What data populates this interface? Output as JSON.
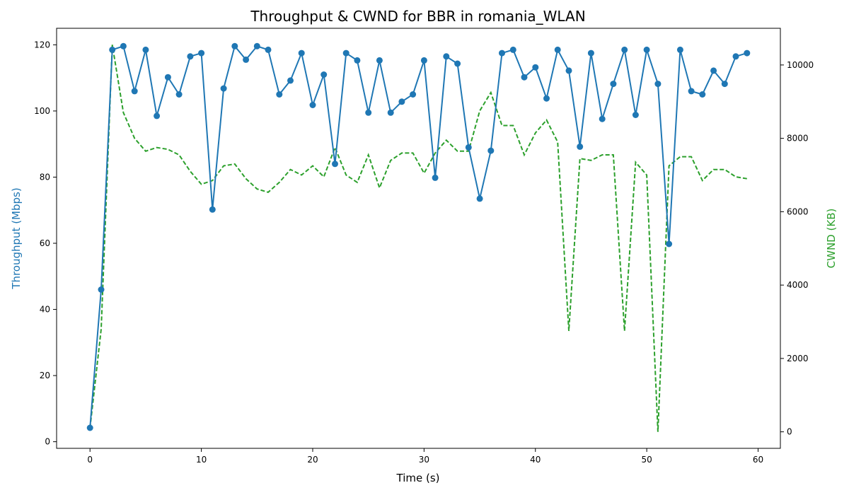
{
  "chart_data": {
    "type": "line",
    "title": "Throughput & CWND for BBR in romania_WLAN",
    "xlabel": "Time (s)",
    "ylabel_left": "Throughput (Mbps)",
    "ylabel_right": "CWND (KB)",
    "xlim": [
      -3,
      62
    ],
    "ylim_left": [
      -2,
      125
    ],
    "ylim_right": [
      -450,
      11000
    ],
    "x_ticks": [
      0,
      10,
      20,
      30,
      40,
      50,
      60
    ],
    "y_left_ticks": [
      0,
      20,
      40,
      60,
      80,
      100,
      120
    ],
    "y_right_ticks": [
      0,
      2000,
      4000,
      6000,
      8000,
      10000
    ],
    "grid": false,
    "colors": {
      "throughput": "#1f77b4",
      "cwnd": "#2ca02c"
    },
    "series": [
      {
        "axis": "left",
        "style": "solid-with-markers",
        "x": [
          0,
          1,
          2,
          3,
          4,
          5,
          6,
          7,
          8,
          9,
          10,
          11,
          12,
          13,
          14,
          15,
          16,
          17,
          18,
          19,
          20,
          21,
          22,
          23,
          24,
          25,
          26,
          27,
          28,
          29,
          30,
          31,
          32,
          33,
          34,
          35,
          36,
          37,
          38,
          39,
          40,
          41,
          42,
          43,
          44,
          45,
          46,
          47,
          48,
          49,
          50,
          51,
          52,
          53,
          54,
          55,
          56,
          57,
          58,
          59
        ],
        "values": [
          4.2,
          46,
          118.5,
          119.6,
          106,
          118.5,
          98.5,
          110.2,
          105,
          116.5,
          117.5,
          70.2,
          106.8,
          119.6,
          115.5,
          119.6,
          118.5,
          105,
          109.2,
          117.5,
          101.8,
          111,
          84,
          117.5,
          115.3,
          99.5,
          115.3,
          99.5,
          102.8,
          105,
          115.3,
          79.8,
          116.5,
          114.3,
          89,
          73.5,
          88,
          117.5,
          118.5,
          110.2,
          113.2,
          103.8,
          118.5,
          112.2,
          89.2,
          117.5,
          97.6,
          108.2,
          118.5,
          98.8,
          118.5,
          108.2,
          59.8,
          118.5,
          106,
          105,
          112.2,
          108.2,
          116.5,
          117.5
        ]
      },
      {
        "axis": "right",
        "style": "dashed",
        "x": [
          0,
          1,
          2,
          3,
          4,
          5,
          6,
          7,
          8,
          9,
          10,
          11,
          12,
          13,
          14,
          15,
          16,
          17,
          18,
          19,
          20,
          21,
          22,
          23,
          24,
          25,
          26,
          27,
          28,
          29,
          30,
          31,
          32,
          33,
          34,
          35,
          36,
          37,
          38,
          39,
          40,
          41,
          42,
          43,
          44,
          45,
          46,
          47,
          48,
          49,
          50,
          51,
          52,
          53,
          54,
          55,
          56,
          57,
          58,
          59
        ],
        "values": [
          100,
          2800,
          10550,
          8700,
          8000,
          7650,
          7750,
          7700,
          7550,
          7100,
          6750,
          6850,
          7250,
          7300,
          6900,
          6620,
          6530,
          6800,
          7150,
          7000,
          7250,
          6950,
          7750,
          7000,
          6800,
          7550,
          6650,
          7400,
          7600,
          7600,
          7050,
          7600,
          7950,
          7650,
          7650,
          8750,
          9250,
          8350,
          8350,
          7550,
          8150,
          8500,
          7900,
          2750,
          7450,
          7400,
          7550,
          7550,
          2750,
          7350,
          7000,
          0,
          7250,
          7500,
          7500,
          6850,
          7150,
          7150,
          6950,
          6900
        ]
      }
    ]
  }
}
